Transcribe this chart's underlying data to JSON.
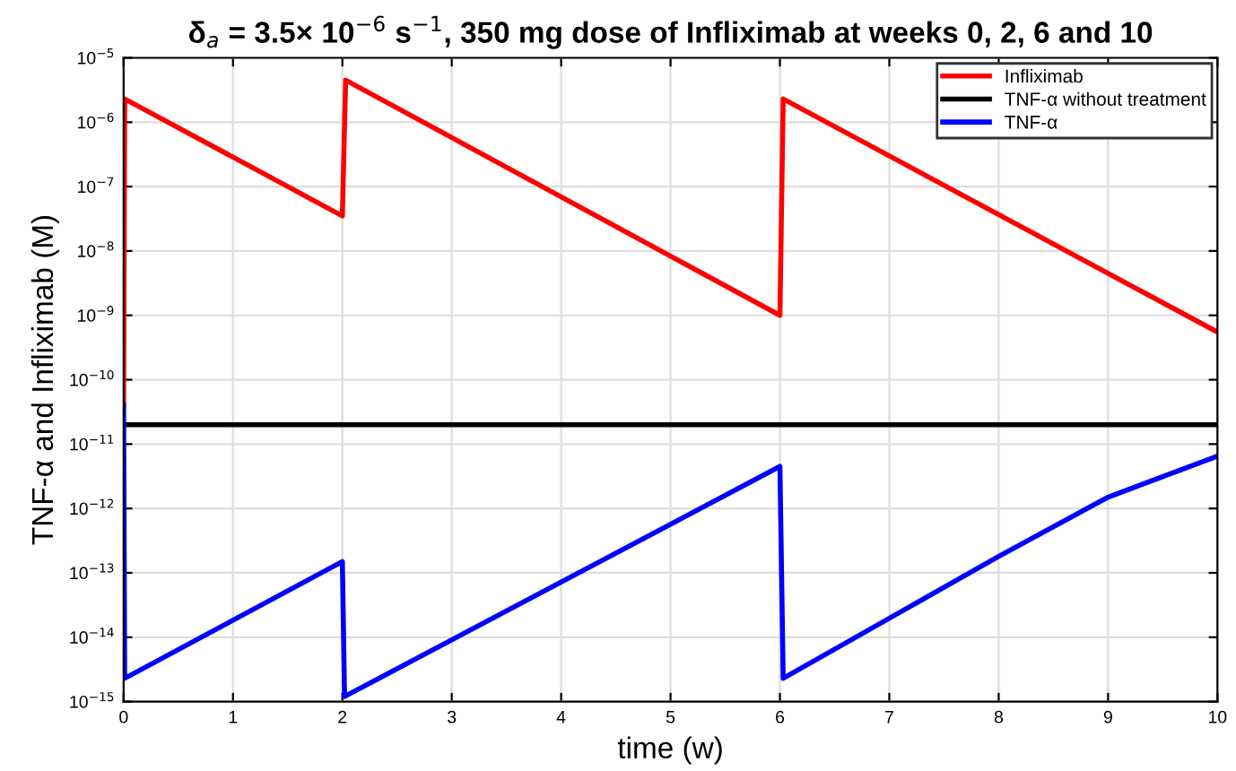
{
  "chart_data": {
    "type": "line",
    "title": "δ$_{a}$ = 3.5× 10$^{−6}$ s$^{−1}$, 350 mg dose of Infliximab at weeks 0, 2, 6 and 10",
    "xlabel": "time (w)",
    "ylabel": "TNF-α and Infliximab (M)",
    "series": [
      {
        "name": "Infliximab",
        "color": "#ff0000",
        "x": [
          0,
          0.01,
          2,
          2.03,
          6,
          6.03,
          10
        ],
        "values": [
          4e-11,
          2.3e-06,
          3.5e-08,
          4.5e-06,
          1e-09,
          2.3e-06,
          5.5e-10
        ]
      },
      {
        "name": "TNF-α without treatment",
        "color": "#000000",
        "x": [
          0,
          10
        ],
        "values": [
          2e-11,
          2e-11
        ]
      },
      {
        "name": "TNF-α",
        "color": "#0000ff",
        "x": [
          0,
          0.01,
          2,
          2.02,
          6,
          6.03,
          8,
          9,
          10
        ],
        "values": [
          4e-11,
          2.3e-15,
          1.5e-13,
          1.2e-15,
          4.5e-12,
          2.3e-15,
          1.8e-13,
          1.5e-12,
          6.5e-12
        ]
      }
    ],
    "log": "y",
    "xlim": [
      0,
      10
    ],
    "xticks": [
      0,
      1,
      2,
      3,
      4,
      5,
      6,
      7,
      8,
      9,
      10
    ],
    "ylim": [
      1e-15,
      1e-05
    ],
    "yticks": [
      {
        "value": 1e-15,
        "label": "10$^{−15}$"
      },
      {
        "value": 1e-14,
        "label": "10$^{−14}$"
      },
      {
        "value": 1e-13,
        "label": "10$^{−13}$"
      },
      {
        "value": 1e-12,
        "label": "10$^{−12}$"
      },
      {
        "value": 1e-11,
        "label": "10$^{−11}$"
      },
      {
        "value": 1e-10,
        "label": "10$^{−10}$"
      },
      {
        "value": 1e-09,
        "label": "10$^{−9}$"
      },
      {
        "value": 1e-08,
        "label": "10$^{−8}$"
      },
      {
        "value": 1e-07,
        "label": "10$^{−7}$"
      },
      {
        "value": 1e-06,
        "label": "10$^{−6}$"
      },
      {
        "value": 1e-05,
        "label": "10$^{−5}$"
      }
    ],
    "grid": true,
    "legend": "top right",
    "line_style": "solid",
    "marker": "none"
  }
}
